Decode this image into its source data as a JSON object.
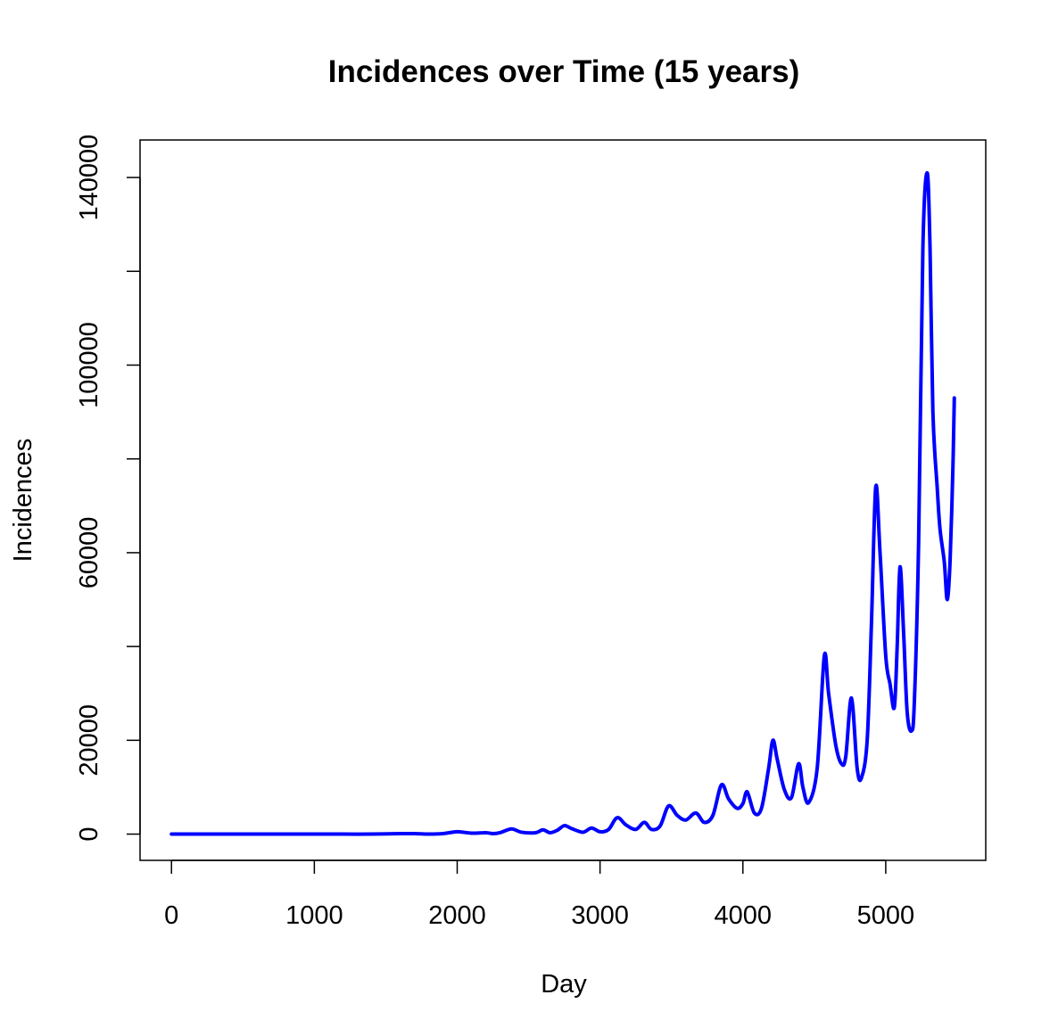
{
  "chart_data": {
    "type": "line",
    "title": "Incidences over Time (15 years)",
    "xlabel": "Day",
    "ylabel": "Incidences",
    "xlim": [
      -220,
      5700
    ],
    "ylim": [
      -5600,
      148000
    ],
    "xticks": [
      0,
      1000,
      2000,
      3000,
      4000,
      5000
    ],
    "yticks": [
      0,
      20000,
      60000,
      100000,
      140000
    ],
    "yticks_minor": [
      40000,
      80000,
      120000
    ],
    "tick_labels_x": [
      "0",
      "1000",
      "2000",
      "3000",
      "4000",
      "5000"
    ],
    "tick_labels_y": [
      "0",
      "20000",
      "60000",
      "100000",
      "140000"
    ],
    "grid": false,
    "line_color": "#0000ff",
    "series": [
      {
        "x": [
          0,
          200,
          400,
          600,
          800,
          1000,
          1200,
          1400,
          1600,
          1700,
          1800,
          1900,
          2000,
          2100,
          2200,
          2250,
          2300,
          2380,
          2450,
          2550,
          2600,
          2650,
          2700,
          2750,
          2800,
          2880,
          2940,
          3000,
          3060,
          3120,
          3180,
          3250,
          3310,
          3360,
          3420,
          3480,
          3540,
          3600,
          3670,
          3730,
          3790,
          3850,
          3900,
          3960,
          4000,
          4030,
          4080,
          4130,
          4180,
          4210,
          4240,
          4290,
          4340,
          4390,
          4420,
          4460,
          4520,
          4570,
          4600,
          4650,
          4690,
          4720,
          4760,
          4800,
          4830,
          4870,
          4900,
          4930,
          4960,
          5000,
          5030,
          5060,
          5080,
          5100,
          5125,
          5150,
          5180,
          5200,
          5230,
          5260,
          5290,
          5310,
          5330,
          5360,
          5380,
          5410,
          5430,
          5450,
          5470,
          5480
        ],
        "y": [
          0,
          0,
          0,
          0,
          0,
          0,
          0,
          0,
          100,
          100,
          0,
          100,
          500,
          200,
          300,
          100,
          300,
          1100,
          400,
          300,
          900,
          300,
          800,
          1800,
          1200,
          400,
          1300,
          500,
          1000,
          3500,
          2000,
          1000,
          2500,
          1000,
          1700,
          6000,
          4000,
          3000,
          4500,
          2500,
          4000,
          10500,
          7500,
          5500,
          6500,
          9000,
          4500,
          5500,
          14000,
          20000,
          16000,
          9500,
          7800,
          15000,
          10000,
          6700,
          14000,
          38000,
          30000,
          19000,
          15000,
          16500,
          29000,
          14000,
          12000,
          20000,
          45000,
          74000,
          60000,
          38000,
          32000,
          27000,
          40000,
          57000,
          43000,
          26000,
          22000,
          28000,
          62000,
          125000,
          141000,
          125000,
          90000,
          74000,
          65000,
          58000,
          50000,
          58000,
          78000,
          93000
        ]
      }
    ]
  }
}
